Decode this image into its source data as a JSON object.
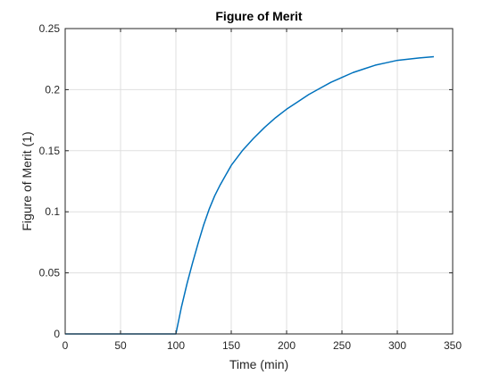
{
  "chart_data": {
    "type": "line",
    "title": "Figure of Merit",
    "xlabel": "Time (min)",
    "ylabel": "Figure of Merit (1)",
    "xlim": [
      0,
      350
    ],
    "ylim": [
      0,
      0.25
    ],
    "xticks": [
      0,
      50,
      100,
      150,
      200,
      250,
      300,
      350
    ],
    "yticks": [
      0,
      0.05,
      0.1,
      0.15,
      0.2,
      0.25
    ],
    "xtick_labels": [
      "0",
      "50",
      "100",
      "150",
      "200",
      "250",
      "300",
      "350"
    ],
    "ytick_labels": [
      "0",
      "0.05",
      "0.1",
      "0.15",
      "0.2",
      "0.25"
    ],
    "grid": true,
    "series": [
      {
        "color": "#0072bd",
        "x": [
          0,
          100,
          105,
          110,
          115,
          120,
          125,
          130,
          135,
          140,
          150,
          160,
          170,
          180,
          190,
          200,
          210,
          220,
          230,
          240,
          250,
          260,
          270,
          280,
          290,
          300,
          310,
          320,
          333
        ],
        "y": [
          0,
          0,
          0.022,
          0.041,
          0.058,
          0.074,
          0.089,
          0.102,
          0.113,
          0.122,
          0.138,
          0.15,
          0.16,
          0.169,
          0.177,
          0.184,
          0.19,
          0.196,
          0.201,
          0.206,
          0.21,
          0.214,
          0.217,
          0.22,
          0.222,
          0.224,
          0.225,
          0.226,
          0.227
        ]
      }
    ]
  }
}
